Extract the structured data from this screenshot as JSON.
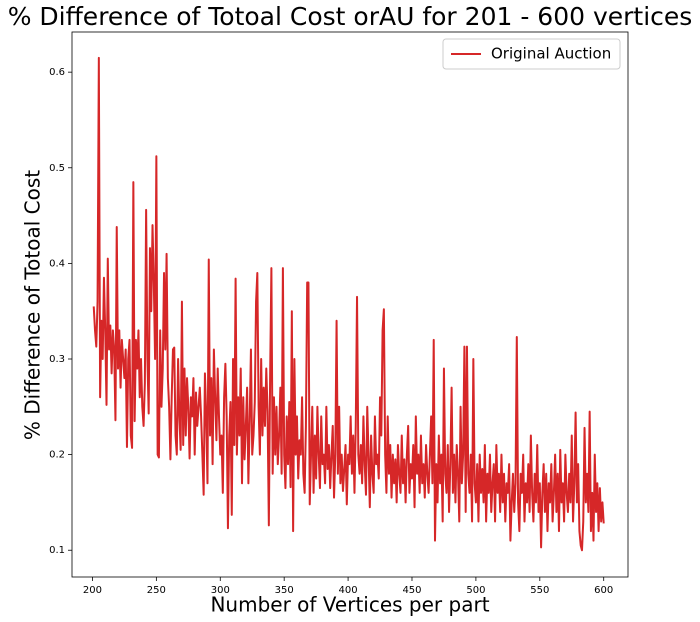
{
  "chart_data": {
    "type": "line",
    "title": "% Difference of Totoal Cost orAU for 201 - 600 vertices",
    "xlabel": "Number of Vertices per part",
    "ylabel": "% Difference of Totoal Cost",
    "legend": "upper right",
    "xlim": [
      184,
      619
    ],
    "ylim": [
      0.072,
      0.642
    ],
    "xticks": [
      200,
      250,
      300,
      350,
      400,
      450,
      500,
      550,
      600
    ],
    "yticks": [
      0.1,
      0.2,
      0.3,
      0.4,
      0.5,
      0.6
    ],
    "x": [
      201,
      202,
      203,
      204,
      205,
      206,
      207,
      208,
      209,
      210,
      211,
      212,
      213,
      214,
      215,
      216,
      217,
      218,
      219,
      220,
      221,
      222,
      223,
      224,
      225,
      226,
      227,
      228,
      229,
      230,
      231,
      232,
      233,
      234,
      235,
      236,
      237,
      238,
      239,
      240,
      241,
      242,
      243,
      244,
      245,
      246,
      247,
      248,
      249,
      250,
      251,
      252,
      253,
      254,
      255,
      256,
      257,
      258,
      259,
      260,
      261,
      262,
      263,
      264,
      265,
      266,
      267,
      268,
      269,
      270,
      271,
      272,
      273,
      274,
      275,
      276,
      277,
      278,
      279,
      280,
      281,
      282,
      283,
      284,
      285,
      286,
      287,
      288,
      289,
      290,
      291,
      292,
      293,
      294,
      295,
      296,
      297,
      298,
      299,
      300,
      301,
      302,
      303,
      304,
      305,
      306,
      307,
      308,
      309,
      310,
      311,
      312,
      313,
      314,
      315,
      316,
      317,
      318,
      319,
      320,
      321,
      322,
      323,
      324,
      325,
      326,
      327,
      328,
      329,
      330,
      331,
      332,
      333,
      334,
      335,
      336,
      337,
      338,
      339,
      340,
      341,
      342,
      343,
      344,
      345,
      346,
      347,
      348,
      349,
      350,
      351,
      352,
      353,
      354,
      355,
      356,
      357,
      358,
      359,
      360,
      361,
      362,
      363,
      364,
      365,
      366,
      367,
      368,
      369,
      370,
      371,
      372,
      373,
      374,
      375,
      376,
      377,
      378,
      379,
      380,
      381,
      382,
      383,
      384,
      385,
      386,
      387,
      388,
      389,
      390,
      391,
      392,
      393,
      394,
      395,
      396,
      397,
      398,
      399,
      400,
      401,
      402,
      403,
      404,
      405,
      406,
      407,
      408,
      409,
      410,
      411,
      412,
      413,
      414,
      415,
      416,
      417,
      418,
      419,
      420,
      421,
      422,
      423,
      424,
      425,
      426,
      427,
      428,
      429,
      430,
      431,
      432,
      433,
      434,
      435,
      436,
      437,
      438,
      439,
      440,
      441,
      442,
      443,
      444,
      445,
      446,
      447,
      448,
      449,
      450,
      451,
      452,
      453,
      454,
      455,
      456,
      457,
      458,
      459,
      460,
      461,
      462,
      463,
      464,
      465,
      466,
      467,
      468,
      469,
      470,
      471,
      472,
      473,
      474,
      475,
      476,
      477,
      478,
      479,
      480,
      481,
      482,
      483,
      484,
      485,
      486,
      487,
      488,
      489,
      490,
      491,
      492,
      493,
      494,
      495,
      496,
      497,
      498,
      499,
      500,
      501,
      502,
      503,
      504,
      505,
      506,
      507,
      508,
      509,
      510,
      511,
      512,
      513,
      514,
      515,
      516,
      517,
      518,
      519,
      520,
      521,
      522,
      523,
      524,
      525,
      526,
      527,
      528,
      529,
      530,
      531,
      532,
      533,
      534,
      535,
      536,
      537,
      538,
      539,
      540,
      541,
      542,
      543,
      544,
      545,
      546,
      547,
      548,
      549,
      550,
      551,
      552,
      553,
      554,
      555,
      556,
      557,
      558,
      559,
      560,
      561,
      562,
      563,
      564,
      565,
      566,
      567,
      568,
      569,
      570,
      571,
      572,
      573,
      574,
      575,
      576,
      577,
      578,
      579,
      580,
      581,
      582,
      583,
      584,
      585,
      586,
      587,
      588,
      589,
      590,
      591,
      592,
      593,
      594,
      595,
      596,
      597,
      598,
      599,
      600
    ],
    "series": [
      {
        "name": "Original Auction",
        "color": "#d62728",
        "values": [
          0.355,
          0.33,
          0.313,
          0.36,
          0.615,
          0.26,
          0.34,
          0.3,
          0.385,
          0.33,
          0.252,
          0.405,
          0.31,
          0.335,
          0.285,
          0.33,
          0.31,
          0.236,
          0.438,
          0.29,
          0.33,
          0.27,
          0.32,
          0.3,
          0.28,
          0.31,
          0.208,
          0.3,
          0.32,
          0.22,
          0.207,
          0.485,
          0.235,
          0.32,
          0.29,
          0.33,
          0.26,
          0.3,
          0.25,
          0.23,
          0.275,
          0.456,
          0.3,
          0.243,
          0.416,
          0.35,
          0.44,
          0.38,
          0.3,
          0.512,
          0.2,
          0.197,
          0.33,
          0.25,
          0.29,
          0.39,
          0.31,
          0.41,
          0.28,
          0.25,
          0.195,
          0.26,
          0.31,
          0.312,
          0.22,
          0.2,
          0.3,
          0.24,
          0.205,
          0.36,
          0.21,
          0.29,
          0.22,
          0.28,
          0.25,
          0.196,
          0.26,
          0.24,
          0.28,
          0.2,
          0.265,
          0.23,
          0.25,
          0.27,
          0.24,
          0.2,
          0.158,
          0.285,
          0.24,
          0.17,
          0.404,
          0.22,
          0.28,
          0.19,
          0.31,
          0.26,
          0.215,
          0.29,
          0.24,
          0.2,
          0.22,
          0.16,
          0.26,
          0.295,
          0.24,
          0.123,
          0.22,
          0.255,
          0.137,
          0.3,
          0.21,
          0.384,
          0.2,
          0.26,
          0.22,
          0.29,
          0.17,
          0.26,
          0.195,
          0.23,
          0.27,
          0.17,
          0.235,
          0.31,
          0.2,
          0.22,
          0.255,
          0.36,
          0.39,
          0.25,
          0.2,
          0.3,
          0.22,
          0.27,
          0.23,
          0.29,
          0.245,
          0.126,
          0.28,
          0.395,
          0.18,
          0.26,
          0.2,
          0.25,
          0.19,
          0.22,
          0.27,
          0.18,
          0.395,
          0.2,
          0.165,
          0.24,
          0.19,
          0.255,
          0.166,
          0.35,
          0.12,
          0.3,
          0.2,
          0.24,
          0.175,
          0.215,
          0.2,
          0.26,
          0.18,
          0.16,
          0.23,
          0.38,
          0.38,
          0.148,
          0.2,
          0.25,
          0.16,
          0.22,
          0.175,
          0.25,
          0.2,
          0.165,
          0.24,
          0.19,
          0.2,
          0.17,
          0.25,
          0.185,
          0.21,
          0.165,
          0.2,
          0.23,
          0.155,
          0.2,
          0.34,
          0.18,
          0.25,
          0.17,
          0.2,
          0.162,
          0.185,
          0.21,
          0.148,
          0.2,
          0.19,
          0.24,
          0.18,
          0.22,
          0.16,
          0.23,
          0.365,
          0.2,
          0.18,
          0.21,
          0.17,
          0.24,
          0.19,
          0.158,
          0.25,
          0.2,
          0.145,
          0.22,
          0.18,
          0.16,
          0.24,
          0.19,
          0.2,
          0.175,
          0.26,
          0.22,
          0.33,
          0.352,
          0.2,
          0.16,
          0.24,
          0.18,
          0.21,
          0.155,
          0.2,
          0.17,
          0.195,
          0.15,
          0.21,
          0.18,
          0.16,
          0.22,
          0.17,
          0.195,
          0.15,
          0.2,
          0.23,
          0.16,
          0.19,
          0.175,
          0.21,
          0.145,
          0.24,
          0.18,
          0.2,
          0.16,
          0.22,
          0.17,
          0.19,
          0.155,
          0.21,
          0.18,
          0.16,
          0.2,
          0.24,
          0.17,
          0.32,
          0.11,
          0.19,
          0.15,
          0.22,
          0.17,
          0.2,
          0.13,
          0.29,
          0.18,
          0.16,
          0.21,
          0.14,
          0.19,
          0.27,
          0.16,
          0.2,
          0.15,
          0.21,
          0.18,
          0.13,
          0.25,
          0.17,
          0.2,
          0.313,
          0.14,
          0.313,
          0.18,
          0.16,
          0.2,
          0.13,
          0.3,
          0.17,
          0.15,
          0.19,
          0.13,
          0.2,
          0.16,
          0.185,
          0.15,
          0.21,
          0.13,
          0.18,
          0.16,
          0.2,
          0.14,
          0.17,
          0.19,
          0.13,
          0.21,
          0.16,
          0.18,
          0.14,
          0.2,
          0.15,
          0.18,
          0.13,
          0.17,
          0.16,
          0.19,
          0.11,
          0.15,
          0.18,
          0.14,
          0.17,
          0.323,
          0.15,
          0.12,
          0.18,
          0.16,
          0.2,
          0.13,
          0.17,
          0.15,
          0.19,
          0.14,
          0.22,
          0.16,
          0.13,
          0.18,
          0.15,
          0.21,
          0.14,
          0.17,
          0.103,
          0.16,
          0.19,
          0.14,
          0.18,
          0.12,
          0.17,
          0.15,
          0.19,
          0.13,
          0.16,
          0.2,
          0.14,
          0.18,
          0.12,
          0.205,
          0.15,
          0.17,
          0.13,
          0.2,
          0.16,
          0.14,
          0.18,
          0.15,
          0.22,
          0.13,
          0.17,
          0.244,
          0.15,
          0.19,
          0.12,
          0.105,
          0.1,
          0.13,
          0.228,
          0.15,
          0.18,
          0.14,
          0.245,
          0.12,
          0.16,
          0.11,
          0.2,
          0.14,
          0.17,
          0.12,
          0.165,
          0.13,
          0.15,
          0.128
        ]
      }
    ]
  }
}
